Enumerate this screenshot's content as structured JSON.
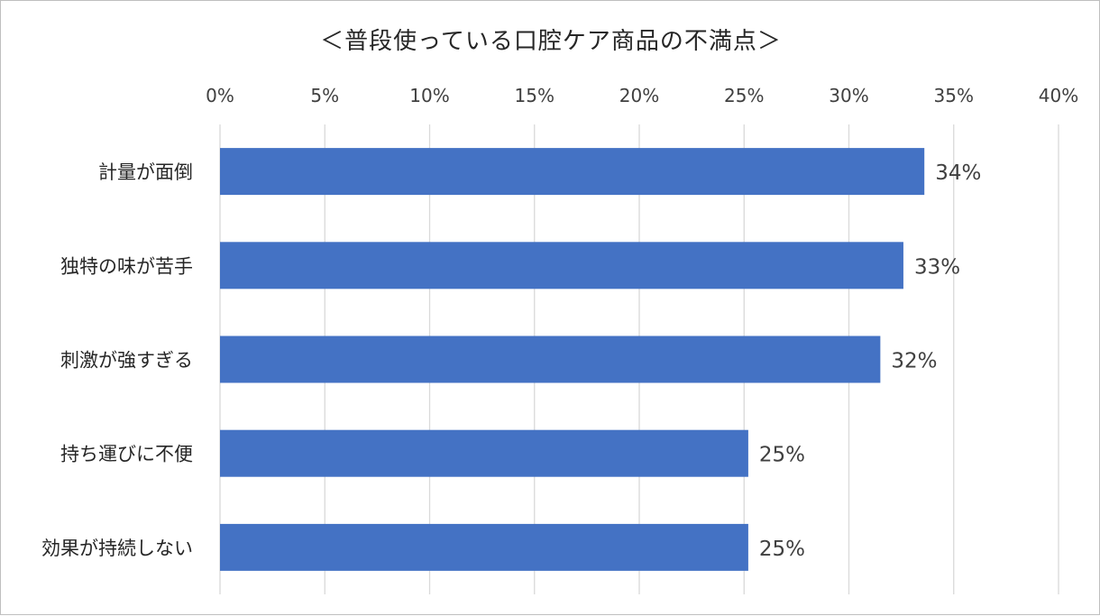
{
  "chart_data": {
    "type": "bar",
    "orientation": "horizontal",
    "title": "＜普段使っている口腔ケア商品の不満点＞",
    "categories": [
      "計量が面倒",
      "独特の味が苦手",
      "刺激が強すぎる",
      "持ち運びに不便",
      "効果が持続しない"
    ],
    "values": [
      33.6,
      32.6,
      31.5,
      25.2,
      25.2
    ],
    "data_labels": [
      "34%",
      "33%",
      "32%",
      "25%",
      "25%"
    ],
    "xlim": [
      0,
      40
    ],
    "x_ticks": [
      0,
      5,
      10,
      15,
      20,
      25,
      30,
      35,
      40
    ],
    "x_tick_labels": [
      "0%",
      "5%",
      "10%",
      "15%",
      "20%",
      "25%",
      "30%",
      "35%",
      "40%"
    ],
    "axis_position": "top",
    "grid": true,
    "legend": "none",
    "bar_color": "#4472C4",
    "grid_color": "#d9d9d9"
  }
}
